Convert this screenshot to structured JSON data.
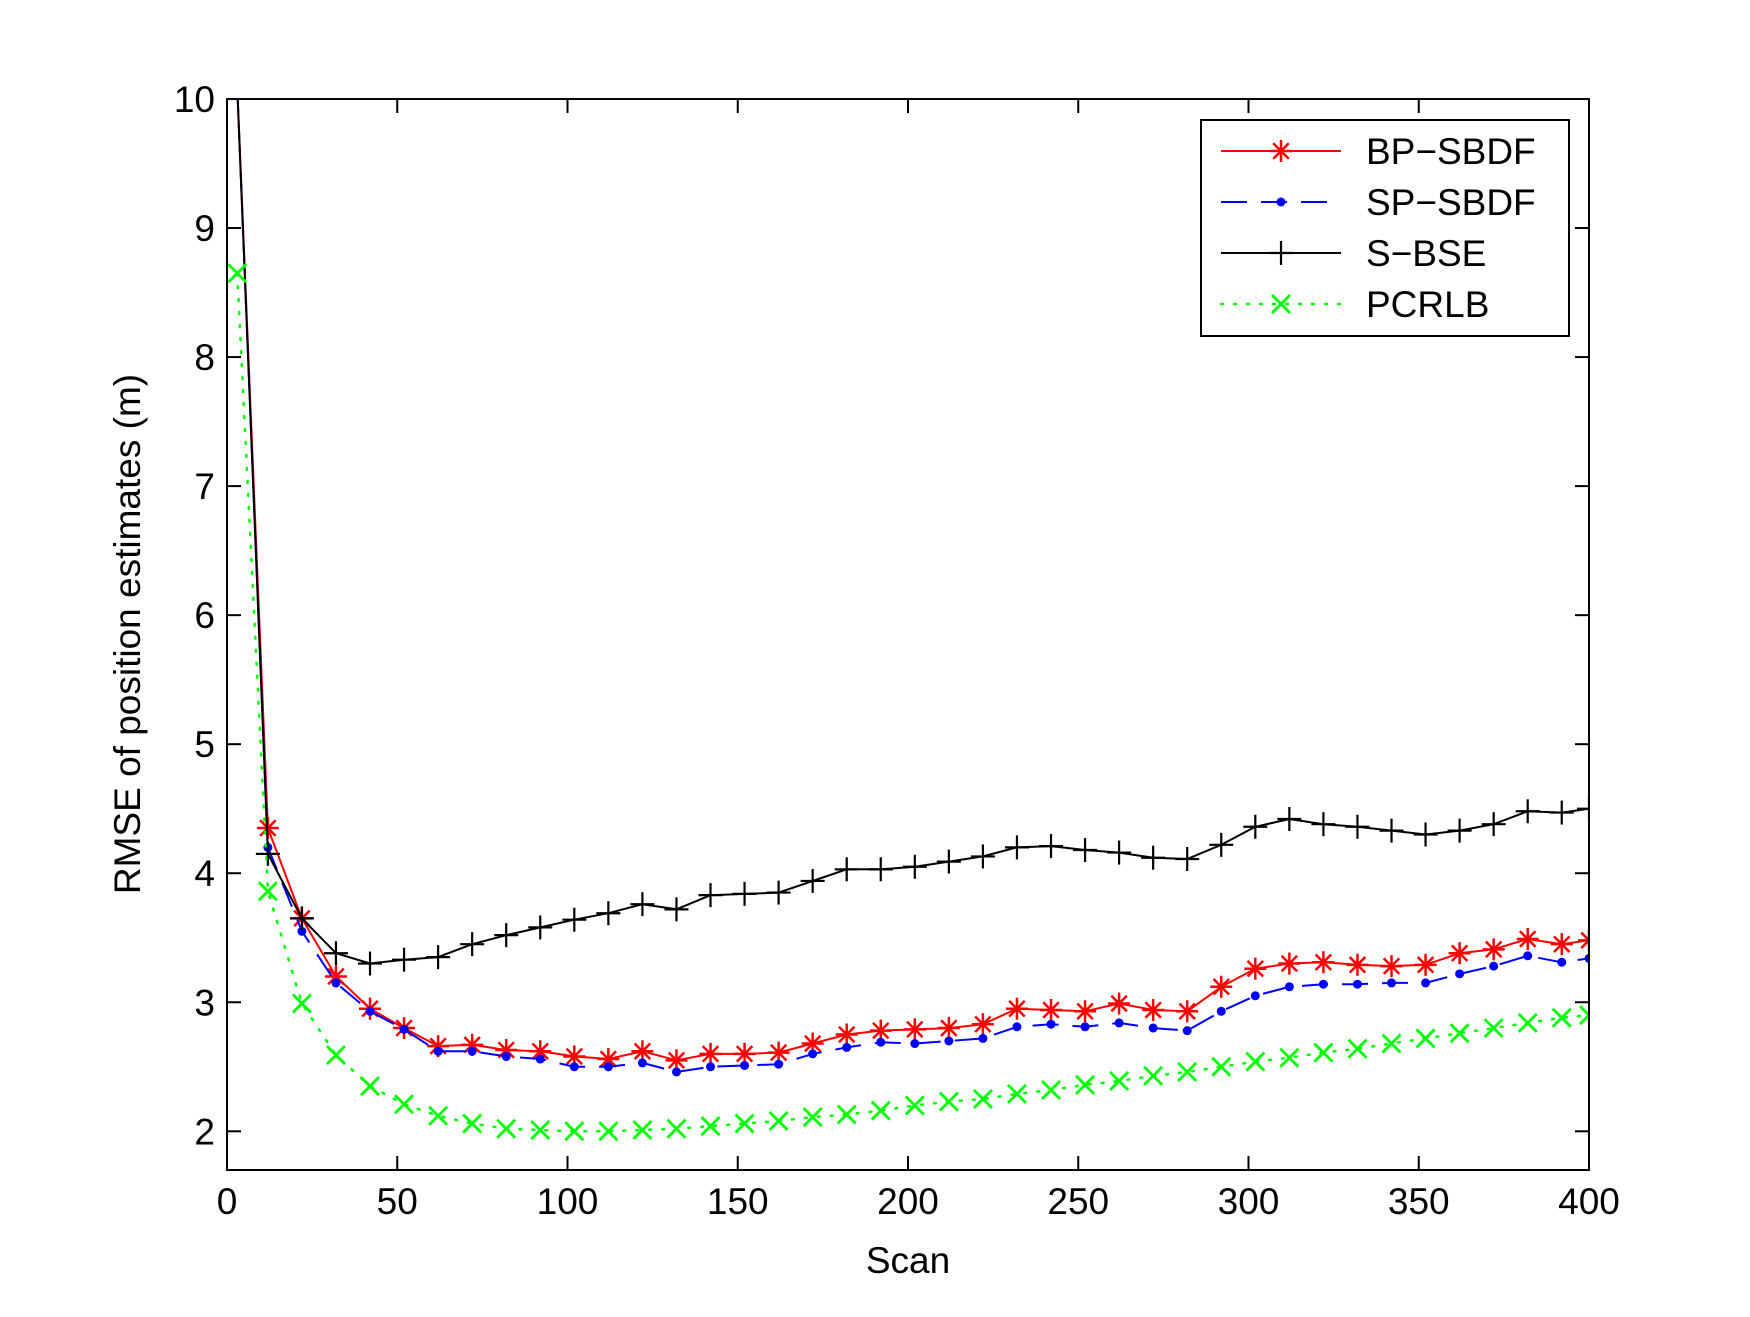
{
  "chart_data": {
    "type": "line",
    "title": "",
    "xlabel": "Scan",
    "ylabel": "RMSE of position estimates (m)",
    "xlim": [
      0,
      400
    ],
    "ylim": [
      1.7,
      10
    ],
    "xticks": [
      0,
      50,
      100,
      150,
      200,
      250,
      300,
      350,
      400
    ],
    "yticks": [
      2,
      3,
      4,
      5,
      6,
      7,
      8,
      9,
      10
    ],
    "grid": false,
    "legend_position": "top-right",
    "x": [
      3,
      12,
      22,
      32,
      42,
      52,
      62,
      72,
      82,
      92,
      102,
      112,
      122,
      132,
      142,
      152,
      162,
      172,
      182,
      192,
      202,
      212,
      222,
      232,
      242,
      252,
      262,
      272,
      282,
      292,
      302,
      312,
      322,
      332,
      342,
      352,
      362,
      372,
      382,
      392,
      400
    ],
    "series": [
      {
        "name": "BP−SBDF",
        "color": "#ff0000",
        "line_style": "solid",
        "marker": "asterisk",
        "values": [
          10.1,
          4.35,
          3.65,
          3.2,
          2.95,
          2.8,
          2.66,
          2.67,
          2.63,
          2.62,
          2.58,
          2.56,
          2.62,
          2.55,
          2.6,
          2.6,
          2.61,
          2.68,
          2.75,
          2.78,
          2.79,
          2.8,
          2.83,
          2.95,
          2.94,
          2.93,
          2.99,
          2.94,
          2.93,
          3.12,
          3.26,
          3.3,
          3.31,
          3.29,
          3.28,
          3.29,
          3.38,
          3.41,
          3.49,
          3.45,
          3.48
        ]
      },
      {
        "name": "SP−SBDF",
        "color": "#0000ff",
        "line_style": "dashed",
        "marker": "dot",
        "values": [
          10.1,
          4.2,
          3.55,
          3.15,
          2.93,
          2.79,
          2.62,
          2.62,
          2.58,
          2.56,
          2.5,
          2.5,
          2.53,
          2.46,
          2.5,
          2.51,
          2.52,
          2.6,
          2.65,
          2.69,
          2.68,
          2.7,
          2.72,
          2.81,
          2.83,
          2.81,
          2.84,
          2.8,
          2.78,
          2.93,
          3.05,
          3.12,
          3.14,
          3.14,
          3.15,
          3.15,
          3.22,
          3.28,
          3.36,
          3.31,
          3.34
        ]
      },
      {
        "name": "S−BSE",
        "color": "#000000",
        "line_style": "solid",
        "marker": "plus",
        "values": [
          10.1,
          4.15,
          3.65,
          3.38,
          3.3,
          3.33,
          3.35,
          3.45,
          3.52,
          3.58,
          3.64,
          3.69,
          3.76,
          3.72,
          3.83,
          3.84,
          3.85,
          3.94,
          4.03,
          4.03,
          4.05,
          4.09,
          4.13,
          4.2,
          4.21,
          4.18,
          4.16,
          4.12,
          4.11,
          4.22,
          4.36,
          4.42,
          4.38,
          4.36,
          4.33,
          4.3,
          4.33,
          4.38,
          4.48,
          4.47,
          4.5
        ]
      },
      {
        "name": "PCRLB",
        "color": "#00ff00",
        "line_style": "dotted",
        "marker": "x",
        "values": [
          8.65,
          3.86,
          2.99,
          2.59,
          2.35,
          2.21,
          2.12,
          2.06,
          2.02,
          2.01,
          2.0,
          2.0,
          2.01,
          2.02,
          2.04,
          2.06,
          2.08,
          2.11,
          2.13,
          2.16,
          2.2,
          2.23,
          2.25,
          2.29,
          2.32,
          2.36,
          2.39,
          2.43,
          2.46,
          2.5,
          2.54,
          2.57,
          2.61,
          2.64,
          2.68,
          2.72,
          2.76,
          2.8,
          2.84,
          2.88,
          2.9
        ]
      }
    ]
  }
}
